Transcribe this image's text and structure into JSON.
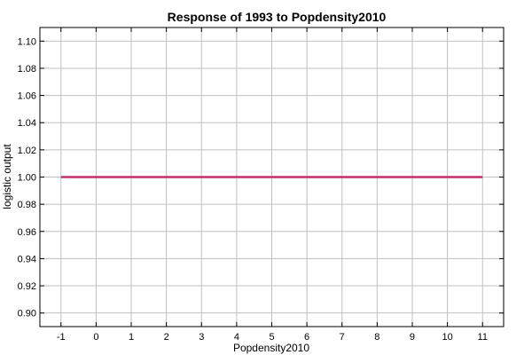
{
  "chart_data": {
    "type": "line",
    "title": "Response of 1993 to Popdensity2010",
    "xlabel": "Popdensity2010",
    "ylabel": "logistic output",
    "xlim": [
      -1.6,
      11.6
    ],
    "ylim": [
      0.89,
      1.11
    ],
    "x_ticks": [
      -1,
      0,
      1,
      2,
      3,
      4,
      5,
      6,
      7,
      8,
      9,
      10,
      11
    ],
    "x_tick_labels": [
      "-1",
      "0",
      "1",
      "2",
      "3",
      "4",
      "5",
      "6",
      "7",
      "8",
      "9",
      "10",
      "11"
    ],
    "y_ticks": [
      0.9,
      0.92,
      0.94,
      0.96,
      0.98,
      1.0,
      1.02,
      1.04,
      1.06,
      1.08,
      1.1
    ],
    "y_tick_labels": [
      "0.90",
      "0.92",
      "0.94",
      "0.96",
      "0.98",
      "1.00",
      "1.02",
      "1.04",
      "1.06",
      "1.08",
      "1.10"
    ],
    "grid": true,
    "series": [
      {
        "x": [
          -1,
          11
        ],
        "y": [
          1.0,
          1.0
        ],
        "color": "#c0306a"
      }
    ]
  }
}
